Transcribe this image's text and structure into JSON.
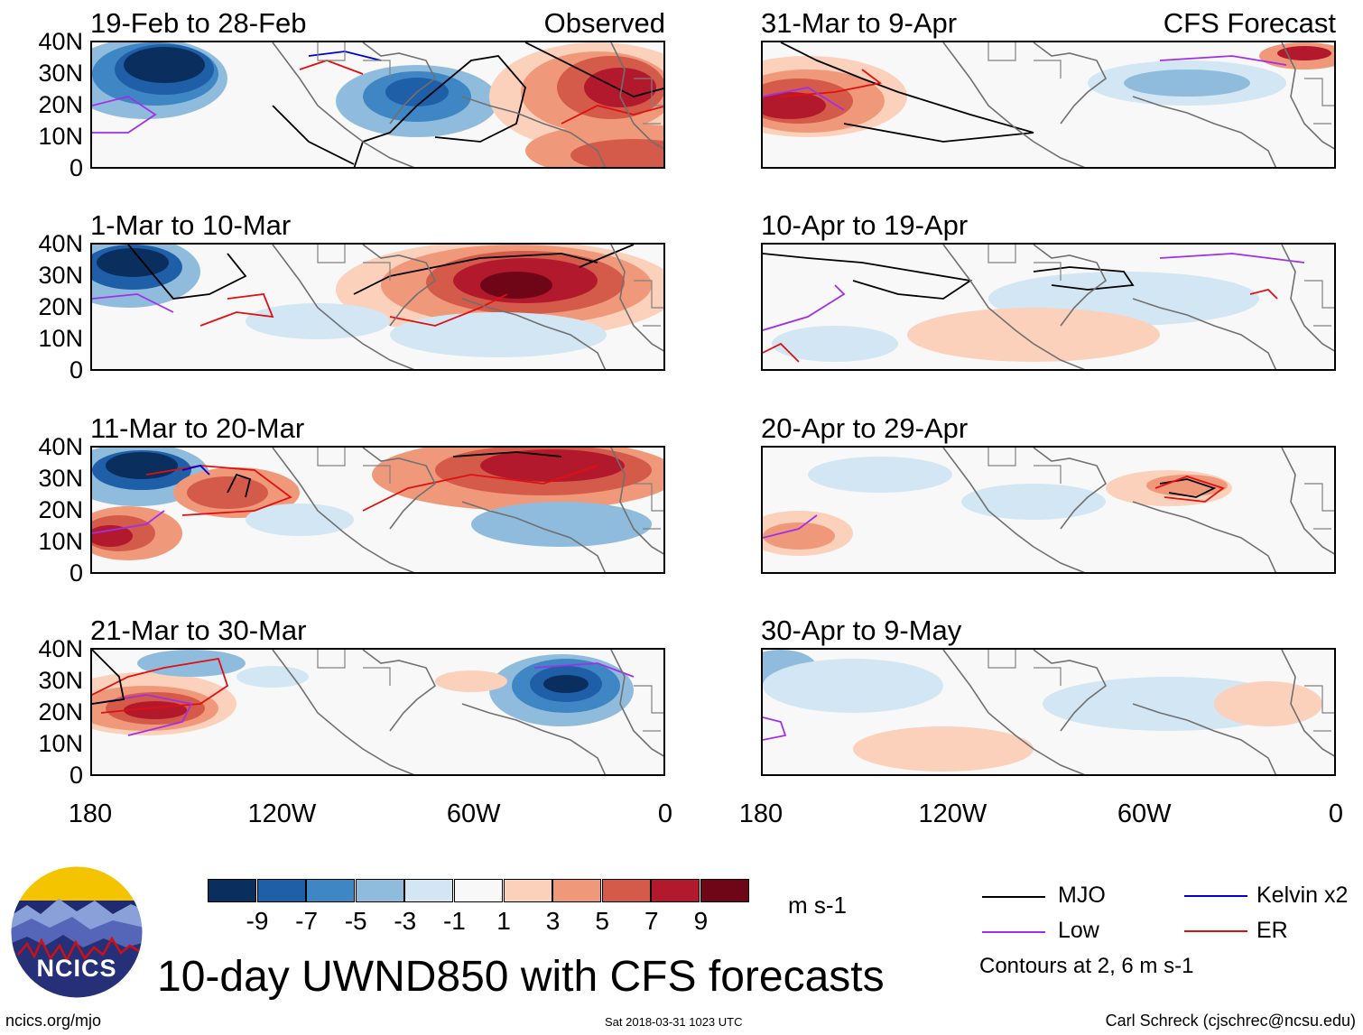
{
  "panels": [
    {
      "title": "19-Feb to 28-Feb",
      "label": "Observed"
    },
    {
      "title": "1-Mar to 10-Mar",
      "label": ""
    },
    {
      "title": "11-Mar to 20-Mar",
      "label": ""
    },
    {
      "title": "21-Mar to 30-Mar",
      "label": ""
    },
    {
      "title": "31-Mar to 9-Apr",
      "label": "CFS Forecast"
    },
    {
      "title": "10-Apr to 19-Apr",
      "label": ""
    },
    {
      "title": "20-Apr to 29-Apr",
      "label": ""
    },
    {
      "title": "30-Apr to 9-May",
      "label": ""
    }
  ],
  "y_ticks": [
    "40N",
    "30N",
    "20N",
    "10N",
    "0"
  ],
  "x_ticks": [
    "180",
    "120W",
    "60W",
    "0"
  ],
  "colorbar": {
    "labels": [
      "-9",
      "-7",
      "-5",
      "-3",
      "-1",
      "1",
      "3",
      "5",
      "7",
      "9"
    ],
    "colors": [
      "#0a2f5f",
      "#1f5fa8",
      "#3e86c4",
      "#8fbcdd",
      "#d2e6f3",
      "#f8f8f8",
      "#fbd1bb",
      "#f0997a",
      "#d45a4a",
      "#b3192c",
      "#6e0618"
    ],
    "units": "m s-1"
  },
  "legend": {
    "mjo": "MJO",
    "kelvin": "Kelvin x2",
    "low": "Low",
    "er": "ER",
    "mjo_color": "#000000",
    "kelvin_color": "#0000cc",
    "low_color": "#a030e8",
    "er_color": "#e01010",
    "contours": "Contours at 2, 6 m s-1"
  },
  "logo_text": "NCICS",
  "main_title": "10-day UWND850 with CFS forecasts",
  "footer": {
    "left": "ncics.org/mjo",
    "center": "Sat 2018-03-31 1023 UTC",
    "right": "Carl Schreck (cjschrec@ncsu.edu)"
  },
  "chart_data": {
    "type": "heatmap",
    "variable": "10-day mean 850-hPa zonal wind anomaly (UWND850)",
    "units": "m s-1",
    "x_range": [
      -180,
      0
    ],
    "y_range": [
      0,
      40
    ],
    "x_tick_labels": [
      "180",
      "120W",
      "60W",
      "0"
    ],
    "y_tick_labels": [
      "0",
      "10N",
      "20N",
      "30N",
      "40N"
    ],
    "color_levels": [
      -9,
      -7,
      -5,
      -3,
      -1,
      1,
      3,
      5,
      7,
      9
    ],
    "contour_levels": [
      2,
      6
    ],
    "contour_types": [
      "MJO",
      "Kelvin x2",
      "Low",
      "ER"
    ],
    "sections": {
      "Observed": 4,
      "CFS Forecast": 4
    }
  }
}
